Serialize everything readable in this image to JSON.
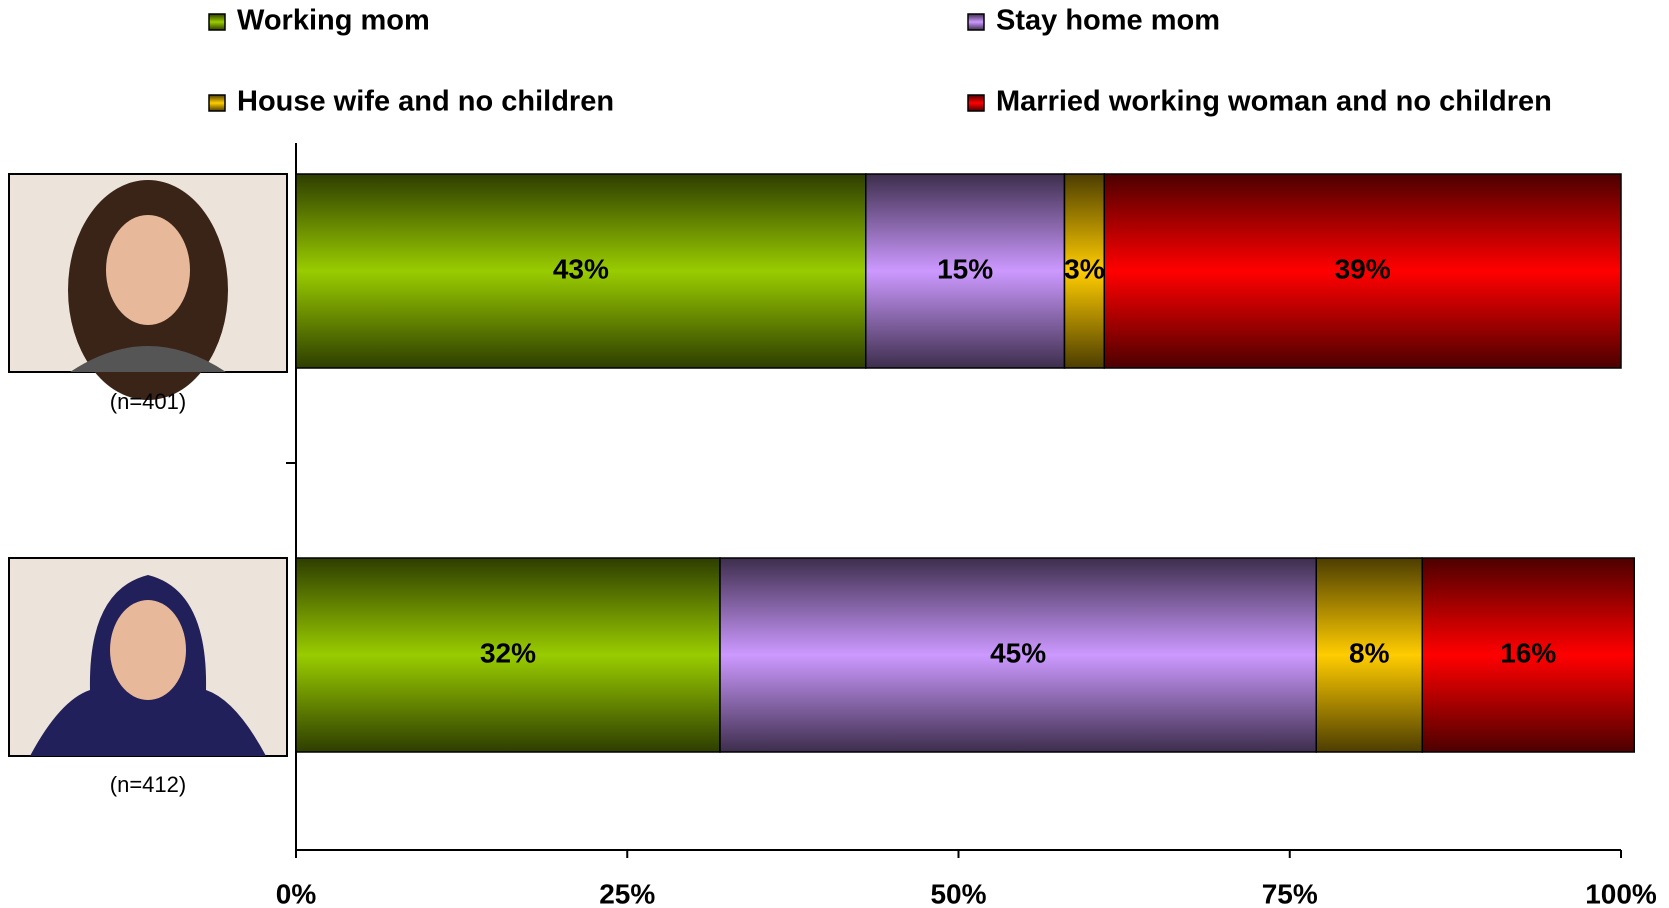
{
  "chart_data": {
    "type": "stacked-bar-horizontal",
    "categories": [
      "(n=401)",
      "(n=412)"
    ],
    "series": [
      {
        "name": "Working mom",
        "color": "#99cc00",
        "values": [
          43,
          32
        ],
        "value_labels": [
          "43%",
          "32%"
        ]
      },
      {
        "name": "Stay home mom",
        "color": "#cc99ff",
        "values": [
          15,
          45
        ],
        "value_labels": [
          "15%",
          "45%"
        ]
      },
      {
        "name": "House wife and no children",
        "color": "#ffcc00",
        "values": [
          3,
          8
        ],
        "value_labels": [
          "3%",
          "8%"
        ]
      },
      {
        "name": "Married working woman and no children",
        "color": "#ff0000",
        "values": [
          39,
          16
        ],
        "value_labels": [
          "39%",
          "16%"
        ]
      }
    ],
    "xlim": [
      0,
      100
    ],
    "xticks": [
      {
        "value": 0,
        "label": "0%"
      },
      {
        "value": 25,
        "label": "25%"
      },
      {
        "value": 50,
        "label": "50%"
      },
      {
        "value": 75,
        "label": "75%"
      },
      {
        "value": 100,
        "label": "100%"
      }
    ],
    "legend": "top"
  }
}
